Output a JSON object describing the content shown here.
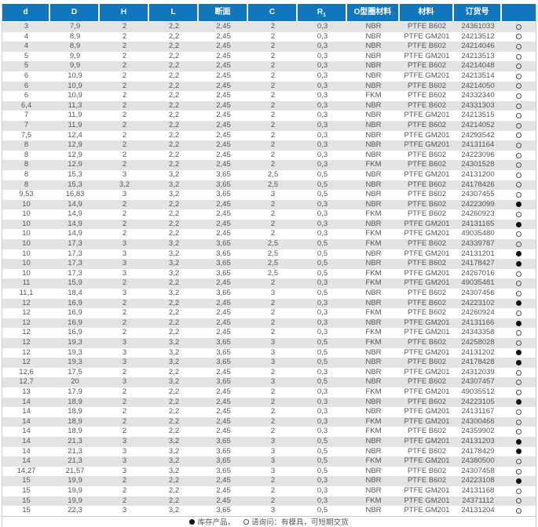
{
  "colors": {
    "header_bg": "#1076bd",
    "header_text": "#ffffff",
    "row_alt": "#e3e3e4",
    "body_text": "#55565a",
    "border": "#c4d0da"
  },
  "table": {
    "columns": [
      {
        "key": "d",
        "label": "d"
      },
      {
        "key": "D",
        "label": "D"
      },
      {
        "key": "H",
        "label": "H"
      },
      {
        "key": "L",
        "label": "L"
      },
      {
        "key": "section",
        "label": "断面"
      },
      {
        "key": "C",
        "label": "C"
      },
      {
        "key": "R1",
        "label": "R",
        "sub": "1"
      },
      {
        "key": "oring_material",
        "label": "O型圈材料"
      },
      {
        "key": "material",
        "label": "材料"
      },
      {
        "key": "order_no",
        "label": "订货号"
      },
      {
        "key": "status",
        "label": ""
      }
    ],
    "rows": [
      [
        "3",
        "7,9",
        "2",
        "2,2",
        "2,45",
        "2",
        "0,3",
        "NBR",
        "PTFE B602",
        "24361033",
        "○"
      ],
      [
        "4",
        "8,9",
        "2",
        "2,2",
        "2,45",
        "2",
        "0,3",
        "NBR",
        "PTFE GM201",
        "24213512",
        "○"
      ],
      [
        "4",
        "8,9",
        "2",
        "2,2",
        "2,45",
        "2",
        "0,3",
        "NBR",
        "PTFE B602",
        "24214046",
        "○"
      ],
      [
        "5",
        "9,9",
        "2",
        "2,2",
        "2,45",
        "2",
        "0,3",
        "NBR",
        "PTFE GM201",
        "24213513",
        "○"
      ],
      [
        "5",
        "9,9",
        "2",
        "2,2",
        "2,45",
        "2",
        "0,3",
        "NBR",
        "PTFE B602",
        "24214048",
        "○"
      ],
      [
        "6",
        "10,9",
        "2",
        "2,2",
        "2,45",
        "2",
        "0,3",
        "NBR",
        "PTFE GM201",
        "24213514",
        "○"
      ],
      [
        "6",
        "10,9",
        "2",
        "2,2",
        "2,45",
        "2",
        "0,3",
        "NBR",
        "PTFE B602",
        "24214050",
        "○"
      ],
      [
        "6",
        "10,9",
        "2",
        "2,2",
        "2,45",
        "2",
        "0,3",
        "FKM",
        "PTFE B602",
        "24332340",
        "○"
      ],
      [
        "6,4",
        "11,3",
        "2",
        "2,2",
        "2,45",
        "2",
        "0,3",
        "NBR",
        "PTFE B602",
        "24331303",
        "○"
      ],
      [
        "7",
        "11,9",
        "2",
        "2,2",
        "2,45",
        "2",
        "0,3",
        "NBR",
        "PTFE GM201",
        "24213515",
        "○"
      ],
      [
        "7",
        "11,9",
        "2",
        "2,2",
        "2,45",
        "2",
        "0,3",
        "NBR",
        "PTFE B602",
        "24214052",
        "○"
      ],
      [
        "7,5",
        "12,4",
        "2",
        "2,2",
        "2,45",
        "2",
        "0,3",
        "NBR",
        "PTFE GM201",
        "24293542",
        "○"
      ],
      [
        "8",
        "12,9",
        "2",
        "2,2",
        "2,45",
        "2",
        "0,3",
        "NBR",
        "PTFE GM201",
        "24131164",
        "○"
      ],
      [
        "8",
        "12,9",
        "2",
        "2,2",
        "2,45",
        "2",
        "0,3",
        "NBR",
        "PTFE B602",
        "24223096",
        "○"
      ],
      [
        "8",
        "12,9",
        "2",
        "2,2",
        "2,45",
        "2",
        "0,3",
        "FKM",
        "PTFE B602",
        "24301528",
        "○"
      ],
      [
        "8",
        "15,3",
        "3",
        "3,2",
        "3,65",
        "2,5",
        "0,5",
        "NBR",
        "PTFE GM201",
        "24131200",
        "○"
      ],
      [
        "8",
        "15,3",
        "3,2",
        "3,2",
        "3,65",
        "2,5",
        "0,5",
        "NBR",
        "PTFE B602",
        "24178426",
        "○"
      ],
      [
        "9,53",
        "16,83",
        "3",
        "3,2",
        "3,65",
        "3",
        "0,5",
        "NBR",
        "PTFE B602",
        "24307455",
        "○"
      ],
      [
        "10",
        "14,9",
        "2",
        "2,2",
        "2,45",
        "2",
        "0,3",
        "NBR",
        "PTFE B602",
        "24223099",
        "●"
      ],
      [
        "10",
        "14,9",
        "2",
        "2,2",
        "2,45",
        "2",
        "0,3",
        "FKM",
        "PTFE B602",
        "24260923",
        "○"
      ],
      [
        "10",
        "14,9",
        "2",
        "2,2",
        "2,45",
        "2",
        "0,3",
        "NBR",
        "PTFE GM201",
        "24131165",
        "●"
      ],
      [
        "10",
        "14,9",
        "2",
        "2,2",
        "2,45",
        "2",
        "0,3",
        "FKM",
        "PTFE GM201",
        "49035480",
        "○"
      ],
      [
        "10",
        "17,3",
        "3",
        "3,2",
        "3,65",
        "2,5",
        "0,5",
        "FKM",
        "PTFE B602",
        "24339787",
        "○"
      ],
      [
        "10",
        "17,3",
        "3",
        "3,2",
        "3,65",
        "2,5",
        "0,5",
        "NBR",
        "PTFE GM201",
        "24131201",
        "●"
      ],
      [
        "10",
        "17,3",
        "3",
        "3,2",
        "3,65",
        "2,5",
        "0,5",
        "NBR",
        "PTFE B602",
        "24178427",
        "●"
      ],
      [
        "10",
        "17,3",
        "3",
        "3,2",
        "3,65",
        "2,5",
        "0,5",
        "FKM",
        "PTFE GM201",
        "24267016",
        "○"
      ],
      [
        "11",
        "15,9",
        "2",
        "2,2",
        "2,45",
        "2",
        "0,3",
        "FKM",
        "PTFE GM201",
        "49035481",
        "○"
      ],
      [
        "11,1",
        "18,4",
        "3",
        "3,2",
        "3,65",
        "3",
        "0,5",
        "NBR",
        "PTFE B602",
        "24307456",
        "○"
      ],
      [
        "12",
        "16,9",
        "2",
        "2,2",
        "2,45",
        "2",
        "0,3",
        "NBR",
        "PTFE B602",
        "24223102",
        "●"
      ],
      [
        "12",
        "16,9",
        "2",
        "2,2",
        "2,45",
        "2",
        "0,3",
        "FKM",
        "PTFE B602",
        "24260924",
        "○"
      ],
      [
        "12",
        "16,9",
        "2",
        "2,2",
        "2,45",
        "2",
        "0,3",
        "NBR",
        "PTFE GM201",
        "24131166",
        "●"
      ],
      [
        "12",
        "16,9",
        "2",
        "2,2",
        "2,45",
        "2",
        "0,3",
        "FKM",
        "PTFE GM201",
        "24343358",
        "○"
      ],
      [
        "12",
        "19,3",
        "3",
        "3,2",
        "3,65",
        "3",
        "0,5",
        "FKM",
        "PTFE B602",
        "24258028",
        "○"
      ],
      [
        "12",
        "19,3",
        "3",
        "3,2",
        "3,65",
        "3",
        "0,5",
        "NBR",
        "PTFE GM201",
        "24131202",
        "●"
      ],
      [
        "12",
        "19,3",
        "3",
        "3,2",
        "3,65",
        "3",
        "0,5",
        "NBR",
        "PTFE B602",
        "24178428",
        "●"
      ],
      [
        "12,6",
        "17,5",
        "2",
        "2,2",
        "2,45",
        "2",
        "0,3",
        "NBR",
        "PTFE GM201",
        "24312039",
        "○"
      ],
      [
        "12,7",
        "20",
        "3",
        "3,2",
        "3,65",
        "3",
        "0,5",
        "NBR",
        "PTFE B602",
        "24307457",
        "○"
      ],
      [
        "13",
        "17,9",
        "2",
        "2,2",
        "2,45",
        "2",
        "0,3",
        "FKM",
        "PTFE GM201",
        "49035512",
        "○"
      ],
      [
        "14",
        "18,9",
        "2",
        "2,2",
        "2,45",
        "2",
        "0,3",
        "NBR",
        "PTFE B602",
        "24223105",
        "●"
      ],
      [
        "14",
        "18,9",
        "2",
        "2,2",
        "2,45",
        "2",
        "0,3",
        "NBR",
        "PTFE GM201",
        "24131167",
        "○"
      ],
      [
        "14",
        "18,9",
        "2",
        "2,2",
        "2,45",
        "2",
        "0,3",
        "FKM",
        "PTFE GM201",
        "24300466",
        "○"
      ],
      [
        "14",
        "18,9",
        "2",
        "2,2",
        "2,45",
        "2",
        "0,3",
        "FKM",
        "PTFE B602",
        "24359902",
        "○"
      ],
      [
        "14",
        "21,3",
        "3",
        "3,2",
        "3,65",
        "3",
        "0,5",
        "NBR",
        "PTFE GM201",
        "24131203",
        "●"
      ],
      [
        "14",
        "21,3",
        "3",
        "3,2",
        "3,65",
        "3",
        "0,5",
        "NBR",
        "PTFE B602",
        "24178429",
        "●"
      ],
      [
        "14",
        "21,3",
        "3",
        "3,2",
        "3,65",
        "3",
        "0,5",
        "FKM",
        "PTFE GM201",
        "24380500",
        "○"
      ],
      [
        "14,27",
        "21,57",
        "3",
        "3,2",
        "3,65",
        "3",
        "0,5",
        "NBR",
        "PTFE B602",
        "24307458",
        "○"
      ],
      [
        "15",
        "19,9",
        "2",
        "2,2",
        "2,45",
        "2",
        "0,3",
        "NBR",
        "PTFE B602",
        "24223108",
        "●"
      ],
      [
        "15",
        "19,9",
        "2",
        "2,2",
        "2,45",
        "2",
        "0,3",
        "NBR",
        "PTFE GM201",
        "24131168",
        "○"
      ],
      [
        "15",
        "19,9",
        "2",
        "2,2",
        "2,45",
        "2",
        "0,3",
        "FKM",
        "PTFE GM201",
        "24371112",
        "○"
      ],
      [
        "15",
        "22,3",
        "3",
        "3,2",
        "3,65",
        "3",
        "0,5",
        "NBR",
        "PTFE GM201",
        "24131204",
        "○"
      ]
    ]
  },
  "legend": {
    "stock_symbol": "●",
    "stock_label": "库存产品，",
    "inquiry_symbol": "○",
    "inquiry_label": "请询问：有模具，可短期交货"
  }
}
